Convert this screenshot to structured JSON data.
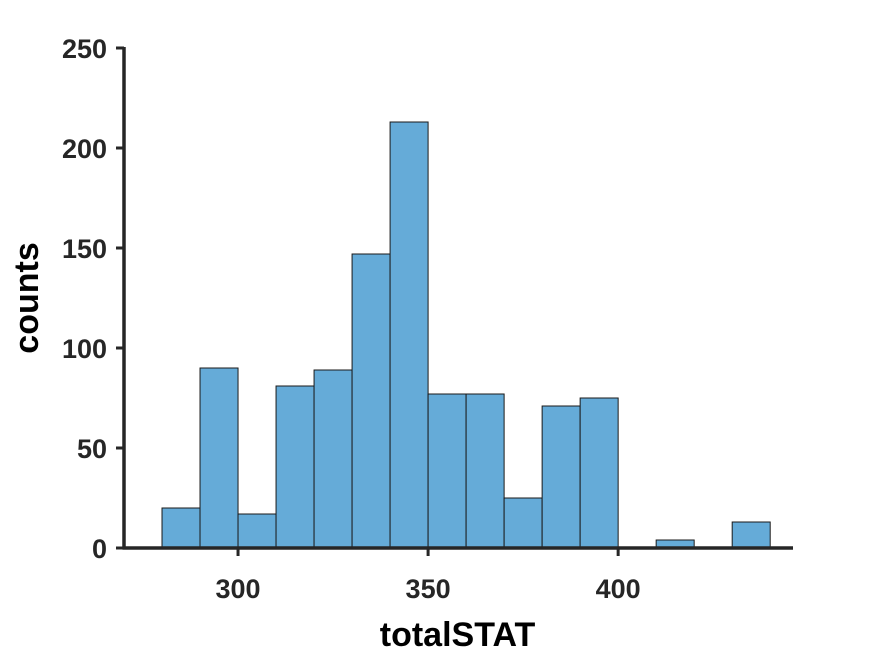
{
  "chart_data": {
    "type": "bar",
    "subtype": "histogram",
    "xlabel": "totalSTAT",
    "ylabel": "counts",
    "xlim": [
      270,
      446
    ],
    "ylim": [
      0,
      250
    ],
    "x_ticks": [
      300,
      350,
      400
    ],
    "y_ticks": [
      0,
      50,
      100,
      150,
      200,
      250
    ],
    "bar_color": "#65abd8",
    "edge_color": "#1a1a1a",
    "grid": false,
    "bins": [
      {
        "x0": 280,
        "x1": 290,
        "count": 20
      },
      {
        "x0": 290,
        "x1": 300,
        "count": 90
      },
      {
        "x0": 300,
        "x1": 310,
        "count": 17
      },
      {
        "x0": 310,
        "x1": 320,
        "count": 81
      },
      {
        "x0": 320,
        "x1": 330,
        "count": 89
      },
      {
        "x0": 330,
        "x1": 340,
        "count": 147
      },
      {
        "x0": 340,
        "x1": 350,
        "count": 213
      },
      {
        "x0": 350,
        "x1": 360,
        "count": 77
      },
      {
        "x0": 360,
        "x1": 370,
        "count": 77
      },
      {
        "x0": 370,
        "x1": 380,
        "count": 25
      },
      {
        "x0": 380,
        "x1": 390,
        "count": 71
      },
      {
        "x0": 390,
        "x1": 400,
        "count": 75
      },
      {
        "x0": 400,
        "x1": 410,
        "count": 0
      },
      {
        "x0": 410,
        "x1": 420,
        "count": 4
      },
      {
        "x0": 420,
        "x1": 430,
        "count": 0
      },
      {
        "x0": 430,
        "x1": 440,
        "count": 13
      }
    ]
  }
}
